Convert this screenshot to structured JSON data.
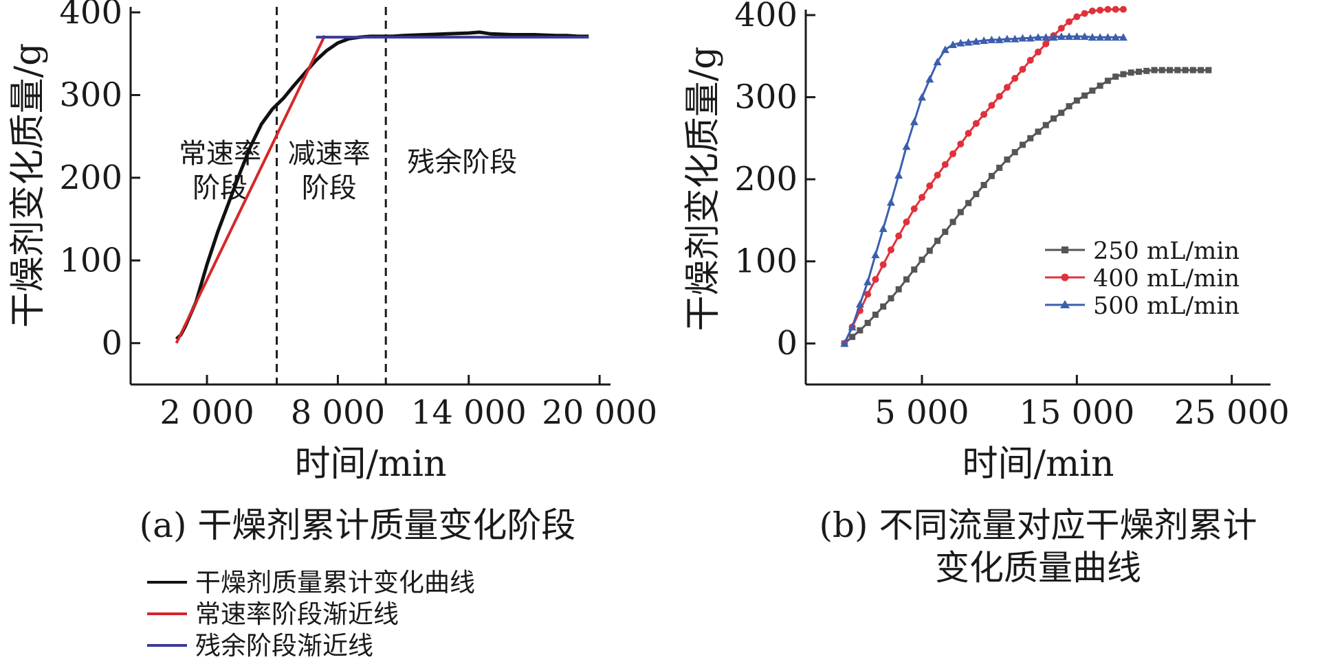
{
  "chart_data": [
    {
      "id": "a",
      "type": "line",
      "title": "(a) 干燥剂累计质量变化阶段",
      "xlabel": "时间/min",
      "ylabel": "干燥剂变化质量/g",
      "xlim": [
        -1500,
        20500
      ],
      "ylim": [
        -50,
        400
      ],
      "xticks": [
        2000,
        8000,
        14000,
        20000
      ],
      "xtick_labels": [
        "2 000",
        "8 000",
        "14 000",
        "20 000"
      ],
      "yticks": [
        0,
        100,
        200,
        300,
        400
      ],
      "ytick_labels": [
        "0",
        "100",
        "200",
        "300",
        "400"
      ],
      "grid": false,
      "dividers": [
        5200,
        10200
      ],
      "regions": [
        {
          "lines": [
            "常速率",
            "阶段"
          ],
          "x": 2600,
          "y": 218
        },
        {
          "lines": [
            "减速率",
            "阶段"
          ],
          "x": 7600,
          "y": 218
        },
        {
          "lines": [
            "残余阶段"
          ],
          "x": 13700,
          "y": 208
        }
      ],
      "legend_position": "bottom",
      "series": [
        {
          "name": "干燥剂质量累计变化曲线",
          "color": "#111111",
          "x": [
            600,
            800,
            1000,
            1500,
            2000,
            2500,
            3000,
            3500,
            4000,
            4500,
            5000,
            5500,
            6000,
            6500,
            7000,
            7500,
            8000,
            8500,
            9000,
            9500,
            10000,
            10500,
            11000,
            12000,
            13000,
            14000,
            14500,
            15000,
            16000,
            17000,
            18000,
            18500,
            19000,
            19500
          ],
          "y": [
            5,
            10,
            20,
            50,
            95,
            135,
            170,
            205,
            238,
            265,
            283,
            296,
            312,
            327,
            342,
            354,
            363,
            368,
            370,
            371,
            371,
            371,
            372,
            373,
            374,
            375,
            376,
            374,
            373,
            373,
            372,
            372,
            371,
            371
          ]
        },
        {
          "name": "常速率阶段渐近线",
          "color": "#d62728",
          "x": [
            600,
            7400
          ],
          "y": [
            0,
            372
          ]
        },
        {
          "name": "残余阶段渐近线",
          "color": "#3a3a9a",
          "x": [
            7000,
            19500
          ],
          "y": [
            370,
            370
          ]
        }
      ]
    },
    {
      "id": "b",
      "type": "line",
      "title": "(b) 不同流量对应干燥剂累计变化质量曲线",
      "title_lines": [
        "(b) 不同流量对应干燥剂累计",
        "变化质量曲线"
      ],
      "xlabel": "时间/min",
      "ylabel": "干燥剂变化质量/g",
      "xlim": [
        -2500,
        27500
      ],
      "ylim": [
        -50,
        400
      ],
      "xticks": [
        5000,
        15000,
        25000
      ],
      "xtick_labels": [
        "5 000",
        "15 000",
        "25 000"
      ],
      "yticks": [
        0,
        100,
        200,
        300,
        400
      ],
      "ytick_labels": [
        "0",
        "100",
        "200",
        "300",
        "400"
      ],
      "grid": false,
      "legend_position": "middle-right",
      "series": [
        {
          "name": "250 mL/min",
          "color": "#555555",
          "marker": "square",
          "x": [
            0,
            500,
            1000,
            1500,
            2000,
            2500,
            3000,
            3500,
            4000,
            4500,
            5000,
            5500,
            6000,
            6500,
            7000,
            7500,
            8000,
            8500,
            9000,
            9500,
            10000,
            10500,
            11000,
            11500,
            12000,
            12500,
            13000,
            13500,
            14000,
            14500,
            15000,
            15500,
            16000,
            16500,
            17000,
            17500,
            18000,
            18500,
            19000,
            19500,
            20000,
            20500,
            21000,
            21500,
            22000,
            22500,
            23000,
            23500
          ],
          "y": [
            0,
            8,
            16,
            25,
            35,
            45,
            55,
            66,
            78,
            90,
            102,
            113,
            125,
            136,
            148,
            160,
            171,
            182,
            193,
            204,
            214,
            224,
            233,
            242,
            250,
            258,
            266,
            274,
            281,
            289,
            296,
            302,
            308,
            314,
            320,
            325,
            328,
            330,
            331,
            332,
            333,
            333,
            333,
            333,
            333,
            333,
            333,
            333
          ]
        },
        {
          "name": "400 mL/min",
          "color": "#e0313b",
          "marker": "circle",
          "x": [
            0,
            500,
            1000,
            1500,
            2000,
            2500,
            3000,
            3500,
            4000,
            4500,
            5000,
            5500,
            6000,
            6500,
            7000,
            7500,
            8000,
            8500,
            9000,
            9500,
            10000,
            10500,
            11000,
            11500,
            12000,
            12500,
            13000,
            13500,
            14000,
            14500,
            15000,
            15500,
            16000,
            16500,
            17000,
            17500,
            18000
          ],
          "y": [
            0,
            20,
            40,
            60,
            78,
            96,
            114,
            131,
            148,
            164,
            178,
            192,
            205,
            218,
            231,
            243,
            256,
            268,
            279,
            290,
            301,
            312,
            323,
            334,
            345,
            355,
            365,
            375,
            384,
            392,
            398,
            402,
            405,
            406,
            407,
            407,
            407
          ]
        },
        {
          "name": "500 mL/min",
          "color": "#3b5fae",
          "marker": "triangle",
          "x": [
            0,
            500,
            1000,
            1500,
            2000,
            2500,
            3000,
            3500,
            4000,
            4500,
            5000,
            5500,
            6000,
            6500,
            7000,
            7500,
            8000,
            8500,
            9000,
            9500,
            10000,
            10500,
            11000,
            11500,
            12000,
            12500,
            13000,
            13500,
            14000,
            14500,
            15000,
            15500,
            16000,
            16500,
            17000,
            17500,
            18000
          ],
          "y": [
            0,
            20,
            48,
            75,
            108,
            140,
            172,
            205,
            240,
            270,
            300,
            322,
            343,
            358,
            364,
            366,
            367,
            368,
            369,
            370,
            370,
            371,
            371,
            372,
            372,
            373,
            373,
            373,
            374,
            374,
            374,
            374,
            373,
            373,
            373,
            373,
            373
          ]
        }
      ]
    }
  ]
}
